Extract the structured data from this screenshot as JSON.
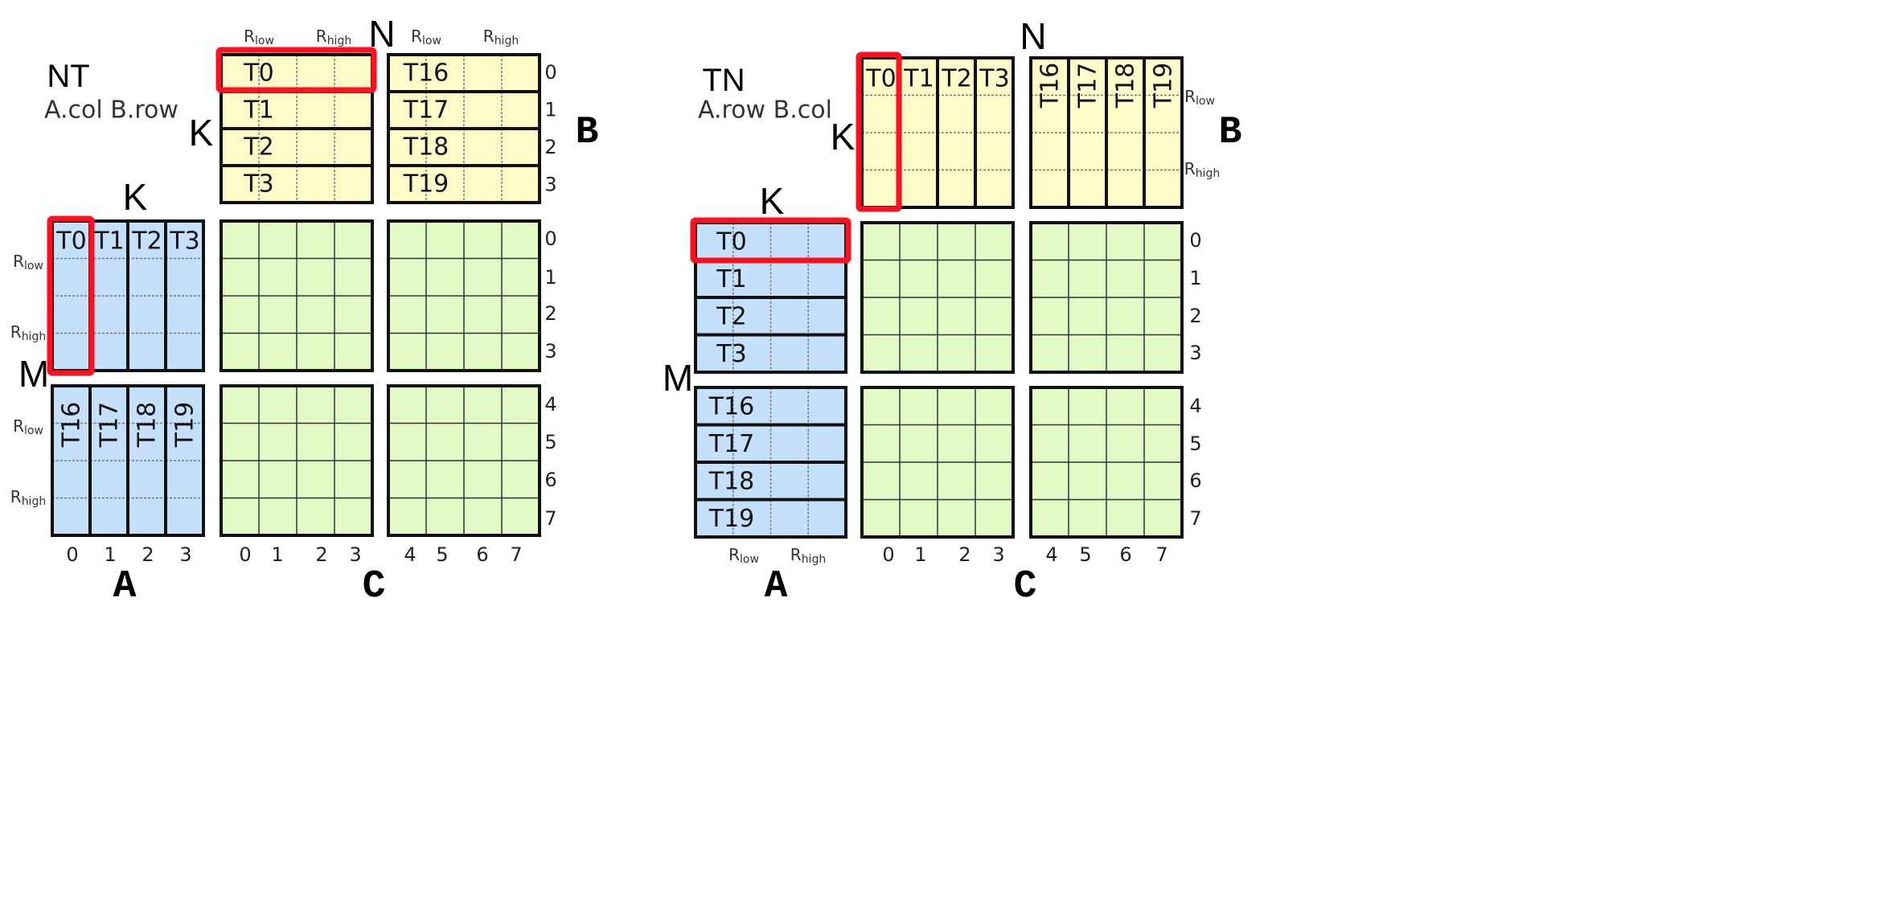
{
  "colors": {
    "a_fill": "#c5e0fb",
    "b_fill": "#fffbc8",
    "c_fill": "#e2fbc6",
    "highlight": "#ff1020",
    "border": "#111111"
  },
  "range_labels": {
    "low": {
      "base": "R",
      "sub": "low"
    },
    "high": {
      "base": "R",
      "sub": "high"
    }
  },
  "panels": [
    {
      "mode": "NT",
      "layout": "A.col B.row",
      "dims": {
        "N": "N",
        "K_b": "K",
        "K_a": "K",
        "M": "M"
      },
      "matrix_labels": {
        "A": "A",
        "B": "B",
        "C": "C"
      },
      "b_tiles": [
        "T0",
        "T1",
        "T2",
        "T3",
        "T16",
        "T17",
        "T18",
        "T19"
      ],
      "a_tiles": [
        "T0",
        "T1",
        "T2",
        "T3",
        "T16",
        "T17",
        "T18",
        "T19"
      ],
      "b_indices": [
        "0",
        "1",
        "2",
        "3"
      ],
      "a_indices": [
        "0",
        "1",
        "2",
        "3"
      ],
      "c_row_indices": [
        "0",
        "1",
        "2",
        "3",
        "4",
        "5",
        "6",
        "7"
      ],
      "c_col_indices": [
        "0",
        "1",
        "2",
        "3",
        "4",
        "5",
        "6",
        "7"
      ],
      "highlighted": {
        "A": "T0",
        "B": "T0"
      }
    },
    {
      "mode": "TN",
      "layout": "A.row B.col",
      "dims": {
        "N": "N",
        "K_b": "K",
        "K_a": "K",
        "M": "M"
      },
      "matrix_labels": {
        "A": "A",
        "B": "B",
        "C": "C"
      },
      "b_tiles": [
        "T0",
        "T1",
        "T2",
        "T3",
        "T16",
        "T17",
        "T18",
        "T19"
      ],
      "a_tiles": [
        "T0",
        "T1",
        "T2",
        "T3",
        "T16",
        "T17",
        "T18",
        "T19"
      ],
      "c_row_indices": [
        "0",
        "1",
        "2",
        "3",
        "4",
        "5",
        "6",
        "7"
      ],
      "c_col_indices": [
        "0",
        "1",
        "2",
        "3",
        "4",
        "5",
        "6",
        "7"
      ],
      "highlighted": {
        "A": "T0",
        "B": "T0"
      }
    }
  ]
}
